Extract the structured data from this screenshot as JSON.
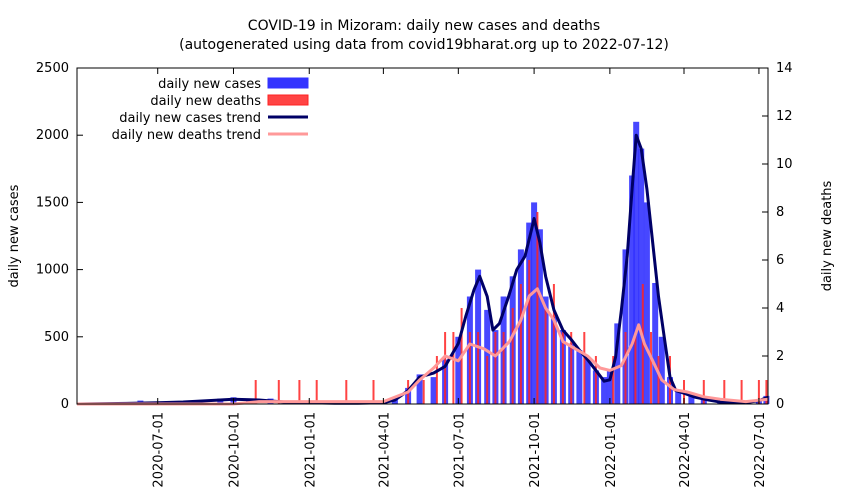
{
  "chart_data": {
    "type": "bar",
    "title": "COVID-19 in Mizoram: daily new cases and deaths",
    "subtitle": "(autogenerated using data from covid19bharat.org up to 2022-07-12)",
    "ylabel": "daily new cases",
    "y2label": "daily new deaths",
    "ylim": [
      0,
      2500
    ],
    "y2lim": [
      0,
      14
    ],
    "y_ticks": [
      "0",
      "500",
      "1000",
      "1500",
      "2000",
      "2500"
    ],
    "y2_ticks": [
      "0",
      "2",
      "4",
      "6",
      "8",
      "10",
      "12",
      "14"
    ],
    "x_ticks": [
      "2020-07-01",
      "2020-10-01",
      "2021-01-01",
      "2021-04-01",
      "2021-07-01",
      "2021-10-01",
      "2022-01-01",
      "2022-04-01",
      "2022-07-01"
    ],
    "x_range": [
      "2020-03-25",
      "2022-07-12"
    ],
    "legend_position": "top-left",
    "colors": {
      "cases": "#3333ff",
      "deaths": "#ff2222",
      "cases_trend": "#000066",
      "deaths_trend": "#ff9999"
    },
    "series": [
      {
        "name": "daily new cases",
        "kind": "bar",
        "axis": "left",
        "points": [
          [
            "2020-06-01",
            10
          ],
          [
            "2020-06-10",
            25
          ],
          [
            "2020-07-15",
            20
          ],
          [
            "2020-08-20",
            30
          ],
          [
            "2020-09-15",
            40
          ],
          [
            "2020-10-01",
            50
          ],
          [
            "2020-10-20",
            30
          ],
          [
            "2020-11-15",
            40
          ],
          [
            "2020-12-15",
            15
          ],
          [
            "2021-01-15",
            10
          ],
          [
            "2021-02-15",
            5
          ],
          [
            "2021-03-15",
            15
          ],
          [
            "2021-04-15",
            40
          ],
          [
            "2021-05-01",
            120
          ],
          [
            "2021-05-15",
            220
          ],
          [
            "2021-06-01",
            200
          ],
          [
            "2021-06-15",
            330
          ],
          [
            "2021-07-01",
            500
          ],
          [
            "2021-07-15",
            800
          ],
          [
            "2021-07-25",
            1000
          ],
          [
            "2021-08-05",
            700
          ],
          [
            "2021-08-15",
            550
          ],
          [
            "2021-08-25",
            800
          ],
          [
            "2021-09-05",
            950
          ],
          [
            "2021-09-15",
            1150
          ],
          [
            "2021-09-25",
            1350
          ],
          [
            "2021-10-01",
            1500
          ],
          [
            "2021-10-08",
            1300
          ],
          [
            "2021-10-15",
            800
          ],
          [
            "2021-10-25",
            650
          ],
          [
            "2021-11-05",
            550
          ],
          [
            "2021-11-15",
            450
          ],
          [
            "2021-11-25",
            400
          ],
          [
            "2021-12-05",
            350
          ],
          [
            "2021-12-15",
            250
          ],
          [
            "2021-12-25",
            200
          ],
          [
            "2022-01-01",
            250
          ],
          [
            "2022-01-10",
            600
          ],
          [
            "2022-01-20",
            1150
          ],
          [
            "2022-01-28",
            1700
          ],
          [
            "2022-02-02",
            2100
          ],
          [
            "2022-02-08",
            1900
          ],
          [
            "2022-02-15",
            1500
          ],
          [
            "2022-02-25",
            900
          ],
          [
            "2022-03-05",
            500
          ],
          [
            "2022-03-15",
            200
          ],
          [
            "2022-03-25",
            100
          ],
          [
            "2022-04-10",
            70
          ],
          [
            "2022-04-25",
            40
          ],
          [
            "2022-05-15",
            15
          ],
          [
            "2022-06-15",
            10
          ],
          [
            "2022-07-01",
            30
          ],
          [
            "2022-07-10",
            60
          ]
        ]
      },
      {
        "name": "daily new deaths",
        "kind": "bar",
        "axis": "right",
        "points": [
          [
            "2020-10-28",
            1
          ],
          [
            "2020-11-25",
            1
          ],
          [
            "2020-12-20",
            1
          ],
          [
            "2021-01-10",
            1
          ],
          [
            "2021-02-15",
            1
          ],
          [
            "2021-03-20",
            1
          ],
          [
            "2021-05-01",
            1
          ],
          [
            "2021-05-20",
            1
          ],
          [
            "2021-06-05",
            2
          ],
          [
            "2021-06-15",
            3
          ],
          [
            "2021-06-25",
            3
          ],
          [
            "2021-07-05",
            4
          ],
          [
            "2021-07-15",
            3
          ],
          [
            "2021-07-25",
            3
          ],
          [
            "2021-08-05",
            2
          ],
          [
            "2021-08-15",
            3
          ],
          [
            "2021-08-25",
            3
          ],
          [
            "2021-09-05",
            4
          ],
          [
            "2021-09-15",
            5
          ],
          [
            "2021-09-25",
            6
          ],
          [
            "2021-10-05",
            8
          ],
          [
            "2021-10-15",
            4
          ],
          [
            "2021-10-25",
            5
          ],
          [
            "2021-11-05",
            3
          ],
          [
            "2021-11-15",
            3
          ],
          [
            "2021-12-01",
            3
          ],
          [
            "2021-12-15",
            2
          ],
          [
            "2022-01-05",
            2
          ],
          [
            "2022-01-20",
            3
          ],
          [
            "2022-02-01",
            3
          ],
          [
            "2022-02-10",
            5
          ],
          [
            "2022-02-20",
            3
          ],
          [
            "2022-03-01",
            2
          ],
          [
            "2022-03-15",
            2
          ],
          [
            "2022-04-01",
            1
          ],
          [
            "2022-04-25",
            1
          ],
          [
            "2022-05-20",
            1
          ],
          [
            "2022-06-10",
            1
          ],
          [
            "2022-07-01",
            1
          ],
          [
            "2022-07-10",
            1
          ]
        ]
      },
      {
        "name": "daily new cases trend",
        "kind": "line",
        "axis": "left",
        "points": [
          [
            "2020-03-25",
            0
          ],
          [
            "2020-06-01",
            5
          ],
          [
            "2020-07-01",
            10
          ],
          [
            "2020-08-01",
            15
          ],
          [
            "2020-09-01",
            25
          ],
          [
            "2020-10-01",
            35
          ],
          [
            "2020-11-01",
            30
          ],
          [
            "2020-12-01",
            15
          ],
          [
            "2021-01-01",
            10
          ],
          [
            "2021-02-01",
            5
          ],
          [
            "2021-03-01",
            5
          ],
          [
            "2021-04-01",
            10
          ],
          [
            "2021-04-15",
            30
          ],
          [
            "2021-05-01",
            100
          ],
          [
            "2021-05-15",
            200
          ],
          [
            "2021-06-01",
            230
          ],
          [
            "2021-06-15",
            280
          ],
          [
            "2021-07-01",
            450
          ],
          [
            "2021-07-10",
            650
          ],
          [
            "2021-07-20",
            850
          ],
          [
            "2021-07-27",
            950
          ],
          [
            "2021-08-05",
            800
          ],
          [
            "2021-08-12",
            550
          ],
          [
            "2021-08-20",
            600
          ],
          [
            "2021-08-31",
            800
          ],
          [
            "2021-09-10",
            1000
          ],
          [
            "2021-09-20",
            1100
          ],
          [
            "2021-09-28",
            1300
          ],
          [
            "2021-10-01",
            1380
          ],
          [
            "2021-10-08",
            1200
          ],
          [
            "2021-10-15",
            950
          ],
          [
            "2021-10-25",
            700
          ],
          [
            "2021-11-05",
            550
          ],
          [
            "2021-11-15",
            480
          ],
          [
            "2021-11-25",
            400
          ],
          [
            "2021-12-05",
            330
          ],
          [
            "2021-12-15",
            250
          ],
          [
            "2021-12-25",
            170
          ],
          [
            "2022-01-01",
            180
          ],
          [
            "2022-01-08",
            350
          ],
          [
            "2022-01-15",
            700
          ],
          [
            "2022-01-22",
            1100
          ],
          [
            "2022-01-28",
            1600
          ],
          [
            "2022-02-02",
            2000
          ],
          [
            "2022-02-08",
            1900
          ],
          [
            "2022-02-15",
            1600
          ],
          [
            "2022-02-22",
            1200
          ],
          [
            "2022-03-01",
            800
          ],
          [
            "2022-03-08",
            500
          ],
          [
            "2022-03-15",
            200
          ],
          [
            "2022-03-22",
            100
          ],
          [
            "2022-04-01",
            80
          ],
          [
            "2022-04-15",
            50
          ],
          [
            "2022-05-01",
            30
          ],
          [
            "2022-05-15",
            15
          ],
          [
            "2022-06-01",
            10
          ],
          [
            "2022-06-15",
            10
          ],
          [
            "2022-07-01",
            25
          ],
          [
            "2022-07-12",
            50
          ]
        ]
      },
      {
        "name": "daily new deaths trend",
        "kind": "line",
        "axis": "right",
        "points": [
          [
            "2020-03-25",
            0
          ],
          [
            "2020-10-01",
            0
          ],
          [
            "2020-11-01",
            0.1
          ],
          [
            "2021-01-01",
            0.1
          ],
          [
            "2021-04-01",
            0.1
          ],
          [
            "2021-05-01",
            0.5
          ],
          [
            "2021-05-15",
            1.0
          ],
          [
            "2021-06-01",
            1.5
          ],
          [
            "2021-06-15",
            2.0
          ],
          [
            "2021-07-01",
            1.8
          ],
          [
            "2021-07-15",
            2.5
          ],
          [
            "2021-08-01",
            2.3
          ],
          [
            "2021-08-15",
            2.0
          ],
          [
            "2021-09-01",
            2.6
          ],
          [
            "2021-09-15",
            3.5
          ],
          [
            "2021-09-25",
            4.5
          ],
          [
            "2021-10-05",
            4.8
          ],
          [
            "2021-10-15",
            4.0
          ],
          [
            "2021-10-25",
            3.5
          ],
          [
            "2021-11-05",
            2.6
          ],
          [
            "2021-11-20",
            2.3
          ],
          [
            "2021-12-05",
            2.0
          ],
          [
            "2021-12-20",
            1.5
          ],
          [
            "2022-01-01",
            1.4
          ],
          [
            "2022-01-15",
            1.6
          ],
          [
            "2022-01-28",
            2.5
          ],
          [
            "2022-02-05",
            3.3
          ],
          [
            "2022-02-12",
            2.5
          ],
          [
            "2022-02-22",
            1.8
          ],
          [
            "2022-03-05",
            1.0
          ],
          [
            "2022-03-20",
            0.6
          ],
          [
            "2022-04-05",
            0.5
          ],
          [
            "2022-04-25",
            0.3
          ],
          [
            "2022-05-15",
            0.2
          ],
          [
            "2022-06-15",
            0.1
          ],
          [
            "2022-07-12",
            0.2
          ]
        ]
      }
    ]
  }
}
